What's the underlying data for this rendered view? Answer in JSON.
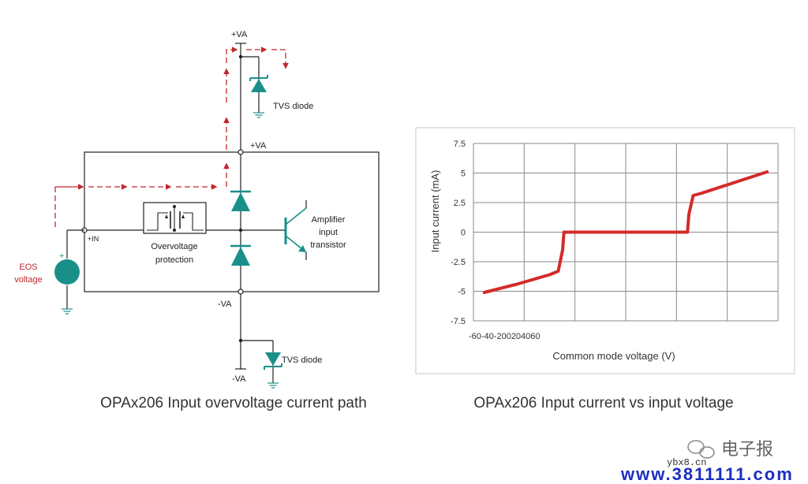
{
  "circuit": {
    "labels": {
      "va_pos_top": "+VA",
      "va_pos_box": "+VA",
      "va_neg_box": "-VA",
      "va_neg_bottom": "-VA",
      "tvs_top": "TVS diode",
      "tvs_bottom": "TVS diode",
      "plus_in": "+IN",
      "ovp_line1": "Overvoltage",
      "ovp_line2": "protection",
      "amp_line1": "Amplifier",
      "amp_line2": "input",
      "amp_line3": "transistor",
      "eos_line1": "EOS",
      "eos_line2": "voltage",
      "source_plus": "+"
    },
    "caption": "OPAx206 Input overvoltage current path",
    "colors": {
      "path": "#c0282d",
      "diode": "#1a8f8a",
      "wire": "#222222"
    }
  },
  "chart_data": {
    "type": "line",
    "caption": "OPAx206 Input current vs input voltage",
    "xlabel": "Common mode voltage (V)",
    "ylabel": "Input current (mA)",
    "x_tick_text": "-60-40-200204060",
    "xlim": [
      -70,
      70
    ],
    "ylim": [
      -7.5,
      7.5
    ],
    "y_ticks": [
      7.5,
      5,
      2.5,
      0,
      -2.5,
      -5,
      -7.5
    ],
    "y_tick_labels": [
      "7.5",
      "5",
      "2.5",
      "0",
      "-2.5",
      "-5",
      "-7.5"
    ],
    "grid": true,
    "series": [
      {
        "color": "#d42a2a",
        "x": [
          -65,
          -50,
          -35,
          -31,
          -29,
          -28.4,
          -27,
          0,
          27,
          28.4,
          29,
          31,
          35,
          50,
          65
        ],
        "y": [
          -5.1,
          -4.4,
          -3.6,
          -3.3,
          -1.5,
          0,
          0,
          0,
          0,
          0,
          1.5,
          3.1,
          3.3,
          4.2,
          5.1
        ]
      }
    ]
  },
  "watermark": {
    "brand": "电子报",
    "small": "ybx8.cn",
    "url": "www.3811111.com"
  }
}
